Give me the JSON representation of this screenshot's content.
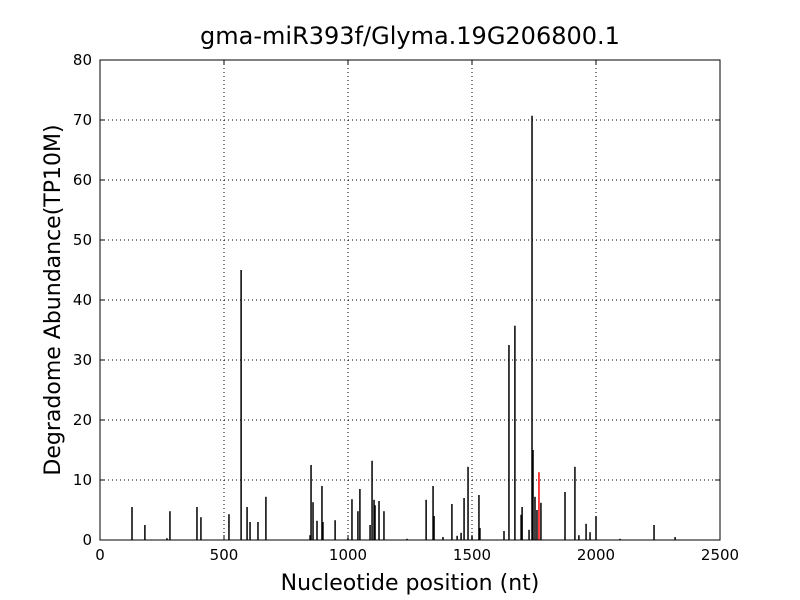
{
  "chart_data": {
    "type": "spike",
    "title": "gma-miR393f/Glyma.19G206800.1",
    "x_label": "Nucleotide position (nt)",
    "y_label": "Degradome Abundance(TP10M)",
    "xlim": [
      0,
      2500
    ],
    "xticks": [
      0,
      500,
      1000,
      1500,
      2000,
      2500
    ],
    "ylim": [
      0,
      80
    ],
    "yticks": [
      0,
      10,
      20,
      30,
      40,
      50,
      60,
      70,
      80
    ],
    "grid": true,
    "series": [
      {
        "color": "#000000",
        "x": [
          129,
          181,
          270,
          282,
          391,
          407,
          520,
          569,
          593,
          605,
          637,
          669,
          847,
          851,
          859,
          875,
          895,
          899,
          948,
          1000,
          1016,
          1040,
          1048,
          1089,
          1097,
          1105,
          1109,
          1125,
          1145,
          1238,
          1315,
          1343,
          1347,
          1383,
          1419,
          1440,
          1456,
          1468,
          1484,
          1500,
          1528,
          1532,
          1629,
          1649,
          1673,
          1698,
          1702,
          1730,
          1742,
          1746,
          1754,
          1762,
          1778,
          1875,
          1915,
          1931,
          1960,
          1976,
          2000,
          2097,
          2234,
          2319
        ],
        "values": [
          5.5,
          2.5,
          0.3,
          4.8,
          5.5,
          3.8,
          4.3,
          45,
          5.5,
          3,
          3,
          7.2,
          0.8,
          12.5,
          6.3,
          3.2,
          9,
          3,
          3.3,
          0.3,
          6.8,
          4.8,
          8.5,
          2.5,
          13.2,
          6.7,
          5.8,
          6.5,
          4.8,
          0.2,
          6.7,
          9,
          4,
          0.5,
          6,
          0.7,
          1.2,
          7,
          12.2,
          0.7,
          7.5,
          2,
          1.5,
          32.5,
          35.7,
          4.2,
          5.5,
          1.7,
          70.7,
          15,
          7.2,
          5,
          6.2,
          8,
          12.2,
          0.8,
          2.7,
          1.3,
          4,
          0.2,
          2.5,
          0.5
        ]
      },
      {
        "color": "#ff0000",
        "x": [
          1770
        ],
        "values": [
          11.3
        ]
      }
    ]
  }
}
